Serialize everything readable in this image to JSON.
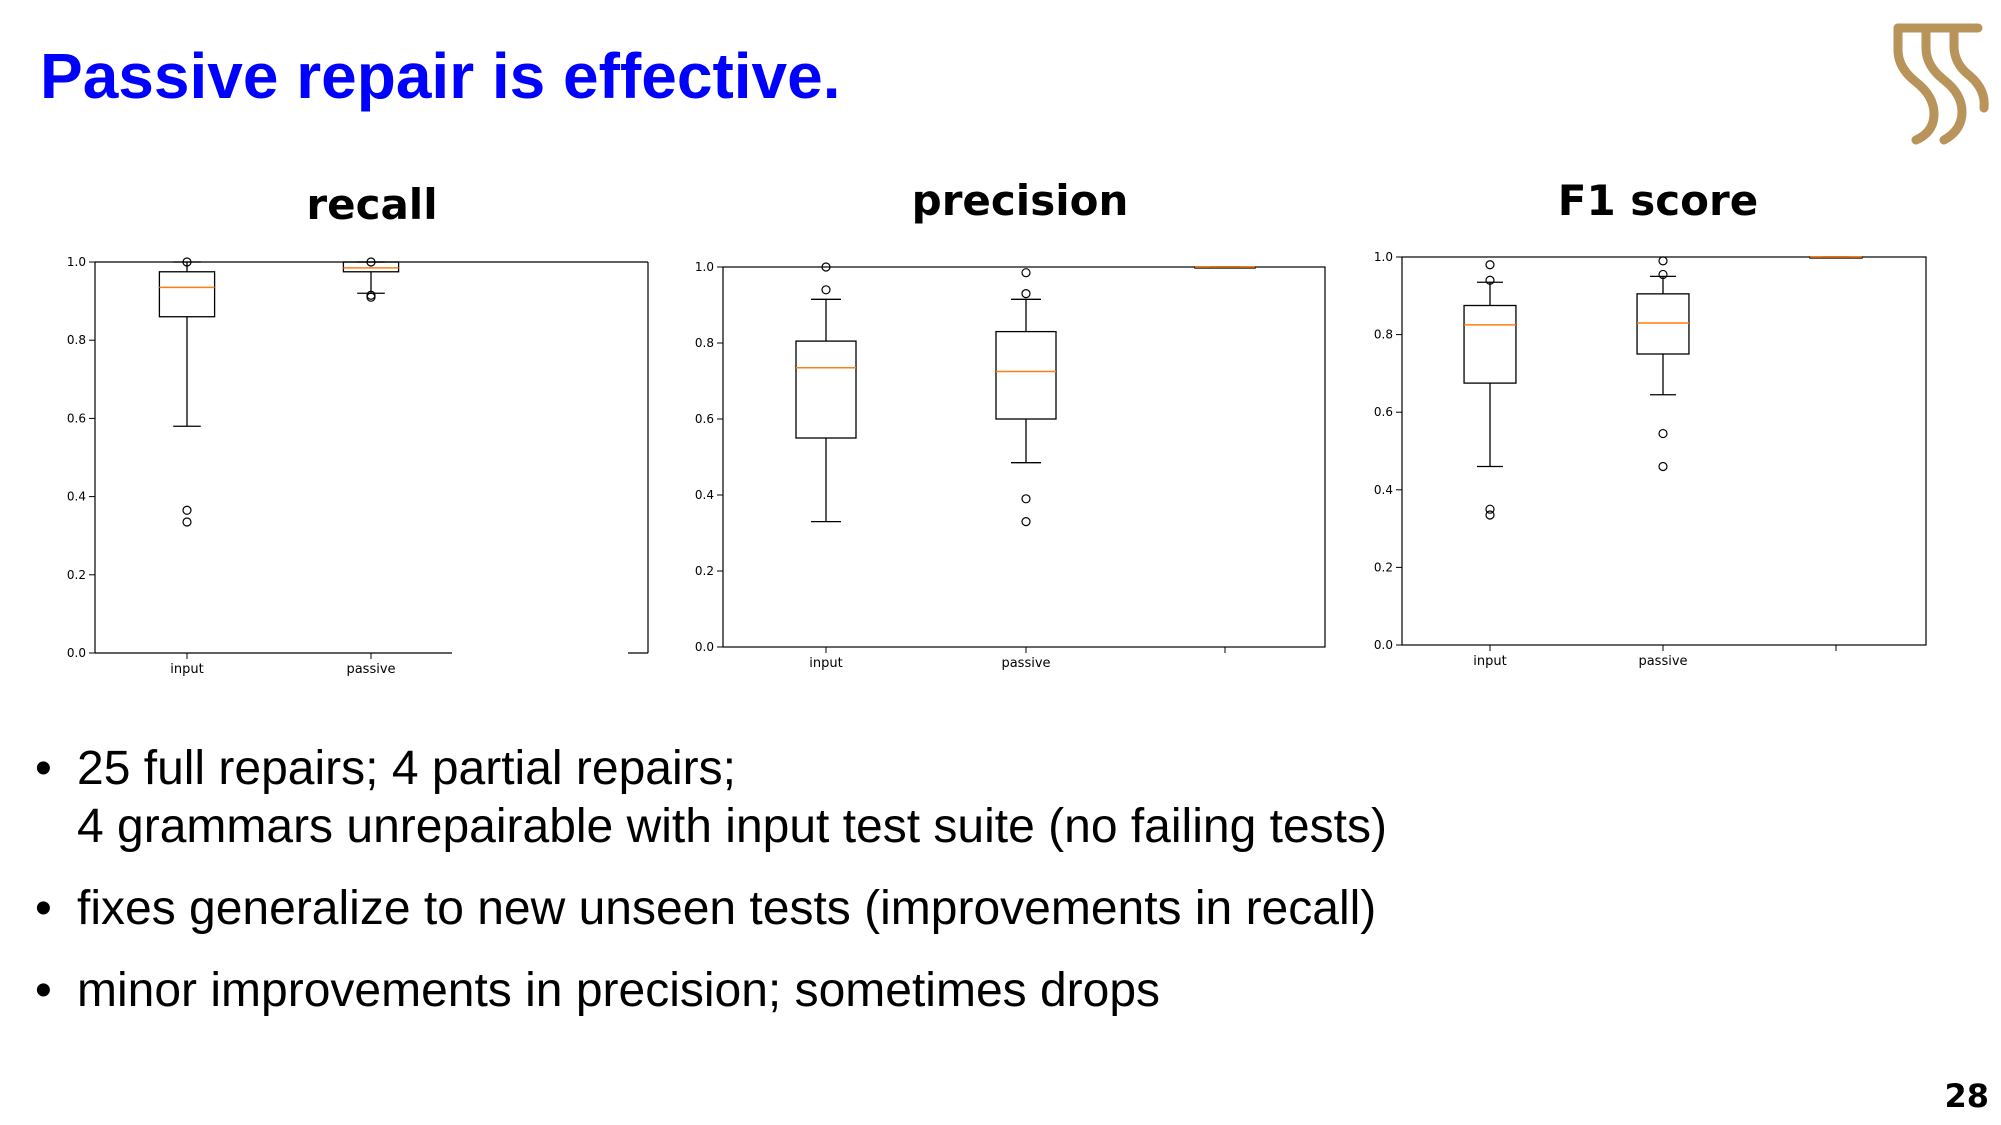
{
  "slide": {
    "title": "Passive repair is effective.",
    "page_number": "28",
    "bullets": [
      {
        "lines": [
          "25 full repairs; 4 partial repairs;",
          "4 grammars unrepairable with input test suite (no failing tests)"
        ]
      },
      {
        "lines": [
          "fixes generalize to new unseen tests (improvements in recall)"
        ]
      },
      {
        "lines": [
          "minor improvements in precision; sometimes drops"
        ]
      }
    ],
    "bullet_glyph": "•",
    "logo_icon": "university-logo",
    "logo_color": "#b8935a",
    "title_color": "#0000ff"
  },
  "chart_data": [
    {
      "type": "boxplot",
      "title": "recall",
      "categories": [
        "input",
        "passive"
      ],
      "ylim": [
        0,
        1.0
      ],
      "yticks": [
        "0.0",
        "0.2",
        "0.4",
        "0.6",
        "0.8",
        "1.0"
      ],
      "grid": false,
      "boxes": [
        {
          "label": "input",
          "whisker_low": 0.58,
          "q1": 0.86,
          "median": 0.935,
          "q3": 0.975,
          "whisker_high": 1.0,
          "fliers": [
            0.365,
            0.335,
            1.0
          ]
        },
        {
          "label": "passive",
          "whisker_low": 0.92,
          "q1": 0.975,
          "median": 0.985,
          "q3": 1.0,
          "whisker_high": 1.0,
          "fliers": [
            0.915,
            0.91,
            1.0
          ]
        }
      ],
      "median_color": "#ff7f0e"
    },
    {
      "type": "boxplot",
      "title": "precision",
      "categories": [
        "input",
        "passive",
        ""
      ],
      "ylim": [
        0,
        1.0
      ],
      "yticks": [
        "0.0",
        "0.2",
        "0.4",
        "0.6",
        "0.8",
        "1.0"
      ],
      "grid": false,
      "boxes": [
        {
          "label": "input",
          "whisker_low": 0.33,
          "q1": 0.55,
          "median": 0.735,
          "q3": 0.805,
          "whisker_high": 0.915,
          "fliers": [
            0.94,
            1.0
          ]
        },
        {
          "label": "passive",
          "whisker_low": 0.485,
          "q1": 0.6,
          "median": 0.725,
          "q3": 0.83,
          "whisker_high": 0.915,
          "fliers": [
            0.93,
            0.985,
            0.39,
            0.33
          ]
        },
        {
          "label": "",
          "whisker_low": 1.0,
          "q1": 1.0,
          "median": 1.0,
          "q3": 1.0,
          "whisker_high": 1.0,
          "fliers": []
        }
      ],
      "median_color": "#ff7f0e"
    },
    {
      "type": "boxplot",
      "title": "F1 score",
      "categories": [
        "input",
        "passive",
        ""
      ],
      "ylim": [
        0,
        1.0
      ],
      "yticks": [
        "0.0",
        "0.2",
        "0.4",
        "0.6",
        "0.8",
        "1.0"
      ],
      "grid": false,
      "boxes": [
        {
          "label": "input",
          "whisker_low": 0.46,
          "q1": 0.675,
          "median": 0.825,
          "q3": 0.875,
          "whisker_high": 0.935,
          "fliers": [
            0.94,
            0.98,
            0.35,
            0.335
          ]
        },
        {
          "label": "passive",
          "whisker_low": 0.645,
          "q1": 0.75,
          "median": 0.83,
          "q3": 0.905,
          "whisker_high": 0.95,
          "fliers": [
            0.955,
            0.99,
            0.545,
            0.46
          ]
        },
        {
          "label": "",
          "whisker_low": 1.0,
          "q1": 1.0,
          "median": 1.0,
          "q3": 1.0,
          "whisker_high": 1.0,
          "fliers": []
        }
      ],
      "median_color": "#ff7f0e"
    }
  ]
}
